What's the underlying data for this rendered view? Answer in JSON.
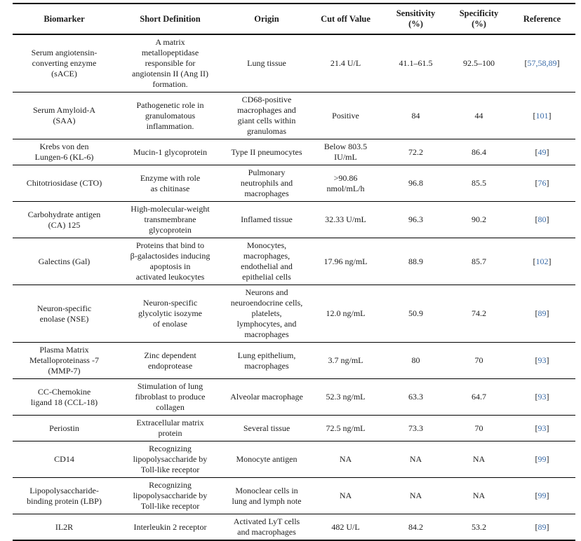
{
  "colors": {
    "link_blue": "#3b6ca8",
    "text": "#1c1c1c",
    "rule": "#000000"
  },
  "table": {
    "columns": [
      {
        "label": "Biomarker"
      },
      {
        "label": "Short Definition"
      },
      {
        "label": "Origin"
      },
      {
        "label": "Cut off Value"
      },
      {
        "label": "Sensitivity\n(%)"
      },
      {
        "label": "Specificity\n(%)"
      },
      {
        "label": "Reference"
      }
    ],
    "rows": [
      {
        "biomarker": "Serum angiotensin-\nconverting enzyme\n(sACE)",
        "definition": "A matrix\nmetallopeptidase\nresponsible for\nangiotensin II (Ang II)\nformation.",
        "origin": "Lung tissue",
        "cutoff": "21.4 U/L",
        "sensitivity": "41.1–61.5",
        "specificity": "92.5–100",
        "reference": {
          "open": "[",
          "links": "57,58,89",
          "close": "]"
        }
      },
      {
        "biomarker": "Serum Amyloid-A\n(SAA)",
        "definition": "Pathogenetic role in\ngranulomatous\ninflammation.",
        "origin": "CD68-positive\nmacrophages and\ngiant cells within\ngranulomas",
        "cutoff": "Positive",
        "sensitivity": "84",
        "specificity": "44",
        "reference": {
          "open": "[",
          "links": "101",
          "close": "]"
        }
      },
      {
        "biomarker": "Krebs von den\nLungen-6 (KL-6)",
        "definition": "Mucin-1 glycoprotein",
        "origin": "Type II pneumocytes",
        "cutoff": "Below 803.5\nIU/mL",
        "sensitivity": "72.2",
        "specificity": "86.4",
        "reference": {
          "open": "[",
          "links": "49",
          "close": "]"
        }
      },
      {
        "biomarker": "Chitotriosidase (CTO)",
        "definition": "Enzyme with role\nas chitinase",
        "origin": "Pulmonary\nneutrophils and\nmacrophages",
        "cutoff": ">90.86\nnmol/mL/h",
        "sensitivity": "96.8",
        "specificity": "85.5",
        "reference": {
          "open": "[",
          "links": "76",
          "close": "]"
        }
      },
      {
        "biomarker": "Carbohydrate antigen\n(CA) 125",
        "definition": "High-molecular-weight\ntransmembrane\nglycoprotein",
        "origin": "Inflamed tissue",
        "cutoff": "32.33 U/mL",
        "sensitivity": "96.3",
        "specificity": "90.2",
        "reference": {
          "open": "[",
          "links": "80",
          "close": "]"
        }
      },
      {
        "biomarker": "Galectins (Gal)",
        "definition": "Proteins that bind to\nβ-galactosides inducing\napoptosis in\nactivated leukocytes",
        "origin": "Monocytes,\nmacrophages,\nendothelial and\nepithelial cells",
        "cutoff": "17.96 ng/mL",
        "sensitivity": "88.9",
        "specificity": "85.7",
        "reference": {
          "open": "[",
          "links": "102",
          "close": "]"
        }
      },
      {
        "biomarker": "Neuron-specific\nenolase (NSE)",
        "definition": "Neuron-specific\nglycolytic isozyme\nof enolase",
        "origin": "Neurons and\nneuroendocrine cells,\nplatelets,\nlymphocytes, and\nmacrophages",
        "cutoff": "12.0 ng/mL",
        "sensitivity": "50.9",
        "specificity": "74.2",
        "reference": {
          "open": "[",
          "links": "89",
          "close": "]"
        }
      },
      {
        "biomarker": "Plasma Matrix\nMetalloproteinass -7\n(MMP-7)",
        "definition": "Zinc dependent\nendoprotease",
        "origin": "Lung epithelium,\nmacrophages",
        "cutoff": "3.7 ng/mL",
        "sensitivity": "80",
        "specificity": "70",
        "reference": {
          "open": "[",
          "links": "93",
          "close": "]"
        }
      },
      {
        "biomarker": "CC-Chemokine\nligand 18 (CCL-18)",
        "definition": "Stimulation of lung\nfibroblast to produce\ncollagen",
        "origin": "Alveolar macrophage",
        "cutoff": "52.3 ng/mL",
        "sensitivity": "63.3",
        "specificity": "64.7",
        "reference": {
          "open": "[",
          "links": "93",
          "close": "]"
        }
      },
      {
        "biomarker": "Periostin",
        "definition": "Extracellular matrix\nprotein",
        "origin": "Several tissue",
        "cutoff": "72.5 ng/mL",
        "sensitivity": "73.3",
        "specificity": "70",
        "reference": {
          "open": "[",
          "links": "93",
          "close": "]"
        }
      },
      {
        "biomarker": "CD14",
        "definition": "Recognizing\nlipopolysaccharide by\nToll-like receptor",
        "origin": "Monocyte antigen",
        "cutoff": "NA",
        "sensitivity": "NA",
        "specificity": "NA",
        "reference": {
          "open": "[",
          "links": "99",
          "close": "]"
        }
      },
      {
        "biomarker": "Lipopolysaccharide-\nbinding protein (LBP)",
        "definition": "Recognizing\nlipopolysaccharide by\nToll-like receptor",
        "origin": "Monoclear cells in\nlung and lymph note",
        "cutoff": "NA",
        "sensitivity": "NA",
        "specificity": "NA",
        "reference": {
          "open": "[",
          "links": "99",
          "close": "]"
        }
      },
      {
        "biomarker": "IL2R",
        "definition": "Interleukin 2 receptor",
        "origin": "Activated LyT cells\nand macrophages",
        "cutoff": "482 U/L",
        "sensitivity": "84.2",
        "specificity": "53.2",
        "reference": {
          "open": "[",
          "links": "89",
          "close": "]"
        }
      }
    ]
  }
}
